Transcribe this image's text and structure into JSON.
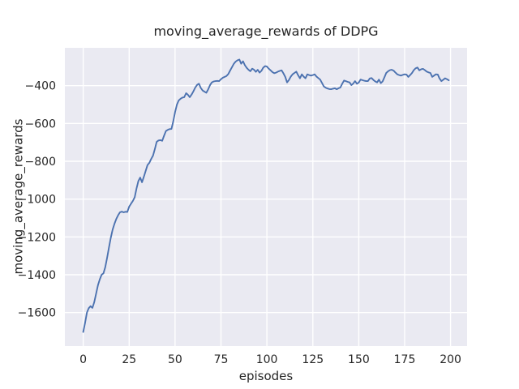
{
  "colors": {
    "figure_background": "#ffffff",
    "axes_background": "#eaeaf2",
    "grid": "#ffffff",
    "line": "#4c72b0",
    "text": "#262626"
  },
  "chart_data": {
    "type": "line",
    "title": "moving_average_rewards of DDPG",
    "xlabel": "episodes",
    "ylabel": "moving_average_rewards",
    "grid": true,
    "legend_position": "none",
    "xlim": [
      -10,
      209
    ],
    "ylim": [
      -1777,
      -200
    ],
    "xticks": [
      0,
      25,
      50,
      75,
      100,
      125,
      150,
      175,
      200
    ],
    "yticks": [
      -400,
      -600,
      -800,
      -1000,
      -1200,
      -1400,
      -1600
    ],
    "series": [
      {
        "name": "DDPG",
        "x_start": 0,
        "x_step": 1,
        "values": [
          -1703,
          -1655,
          -1600,
          -1577,
          -1566,
          -1575,
          -1545,
          -1500,
          -1455,
          -1425,
          -1400,
          -1392,
          -1360,
          -1310,
          -1255,
          -1205,
          -1161,
          -1130,
          -1105,
          -1085,
          -1070,
          -1066,
          -1070,
          -1067,
          -1068,
          -1040,
          -1025,
          -1010,
          -990,
          -945,
          -905,
          -886,
          -911,
          -882,
          -850,
          -820,
          -808,
          -788,
          -770,
          -735,
          -697,
          -690,
          -688,
          -692,
          -665,
          -640,
          -634,
          -630,
          -629,
          -590,
          -540,
          -500,
          -478,
          -469,
          -463,
          -461,
          -440,
          -448,
          -461,
          -447,
          -430,
          -410,
          -396,
          -390,
          -412,
          -426,
          -432,
          -438,
          -420,
          -398,
          -383,
          -378,
          -376,
          -375,
          -376,
          -366,
          -358,
          -354,
          -349,
          -338,
          -320,
          -302,
          -284,
          -273,
          -266,
          -262,
          -284,
          -271,
          -292,
          -306,
          -316,
          -324,
          -310,
          -316,
          -327,
          -316,
          -331,
          -322,
          -305,
          -297,
          -299,
          -310,
          -319,
          -328,
          -334,
          -331,
          -326,
          -322,
          -319,
          -335,
          -354,
          -383,
          -370,
          -352,
          -340,
          -333,
          -326,
          -345,
          -361,
          -340,
          -352,
          -361,
          -340,
          -344,
          -347,
          -344,
          -340,
          -352,
          -360,
          -368,
          -386,
          -404,
          -411,
          -415,
          -418,
          -419,
          -416,
          -414,
          -419,
          -414,
          -410,
          -390,
          -373,
          -376,
          -380,
          -383,
          -397,
          -389,
          -376,
          -390,
          -384,
          -368,
          -371,
          -374,
          -376,
          -376,
          -362,
          -360,
          -370,
          -378,
          -383,
          -368,
          -387,
          -378,
          -355,
          -333,
          -324,
          -318,
          -316,
          -321,
          -331,
          -340,
          -344,
          -347,
          -343,
          -340,
          -342,
          -354,
          -344,
          -333,
          -318,
          -308,
          -304,
          -319,
          -313,
          -311,
          -318,
          -326,
          -330,
          -333,
          -354,
          -347,
          -340,
          -341,
          -362,
          -376,
          -369,
          -361,
          -366,
          -372
        ]
      }
    ]
  }
}
